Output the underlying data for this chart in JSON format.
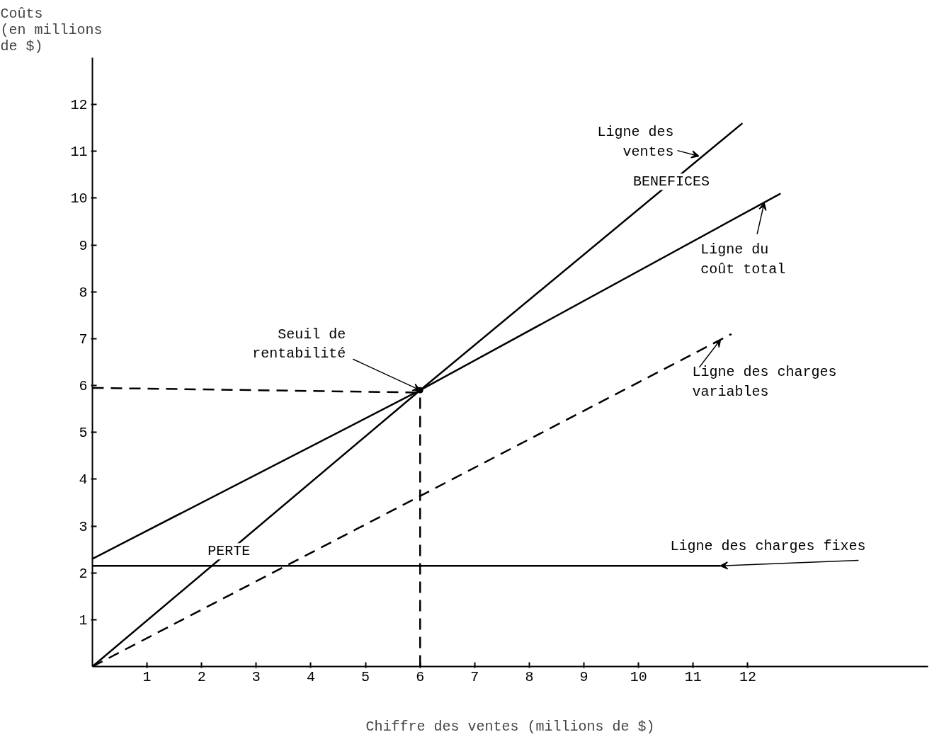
{
  "chart_data": {
    "type": "line",
    "xlabel": "Chiffre des ventes (millions de $)",
    "ylabel": "Coûts\n(en millions\nde $)",
    "xlim": [
      0,
      15.3
    ],
    "ylim": [
      0,
      13
    ],
    "xticks": [
      1,
      2,
      3,
      4,
      5,
      6,
      7,
      8,
      9,
      10,
      11,
      12
    ],
    "yticks": [
      1,
      2,
      3,
      4,
      5,
      6,
      7,
      8,
      9,
      10,
      11,
      12
    ],
    "grid": false,
    "series": [
      {
        "color": "#000000",
        "line_style": "solid",
        "x": [
          0,
          6,
          11.9
        ],
        "values": [
          0,
          5.9,
          11.6
        ]
      },
      {
        "color": "#000000",
        "line_style": "solid",
        "x": [
          0,
          6,
          12.6
        ],
        "values": [
          2.3,
          5.9,
          10.1
        ]
      },
      {
        "color": "#000000",
        "line_style": "solid",
        "x": [
          0,
          11.5
        ],
        "values": [
          2.15,
          2.15
        ]
      },
      {
        "color": "#000000",
        "line_style": "dashed",
        "x": [
          0,
          11.7
        ],
        "values": [
          0,
          7.1
        ]
      },
      {
        "color": "#000000",
        "line_style": "dashed",
        "x": [
          0,
          6
        ],
        "values": [
          5.95,
          5.85
        ]
      },
      {
        "color": "#000000",
        "line_style": "dashed",
        "x": [
          6,
          6
        ],
        "values": [
          0,
          5.9
        ]
      },
      {
        "type": "scatter",
        "color": "#000000",
        "marker": "circle",
        "x": [
          6
        ],
        "values": [
          5.9
        ]
      }
    ],
    "annotations": [
      {
        "text": "Ligne des\nventes",
        "x": 11.1,
        "y": 10.9
      },
      {
        "text": "BENEFICES",
        "x": 10.6,
        "y": 10.35
      },
      {
        "text": "Ligne du\ncoût total",
        "x": 12.3,
        "y": 9.9
      },
      {
        "text": "Seuil de\nrentabilité",
        "x": 6,
        "y": 5.9
      },
      {
        "text": "Ligne des charges\nvariables",
        "x": 11.5,
        "y": 6.98
      },
      {
        "text": "PERTE",
        "x": 2.5,
        "y": 2.46
      },
      {
        "text": "Ligne des charges fixes",
        "x": 11.5,
        "y": 2.15
      }
    ]
  }
}
